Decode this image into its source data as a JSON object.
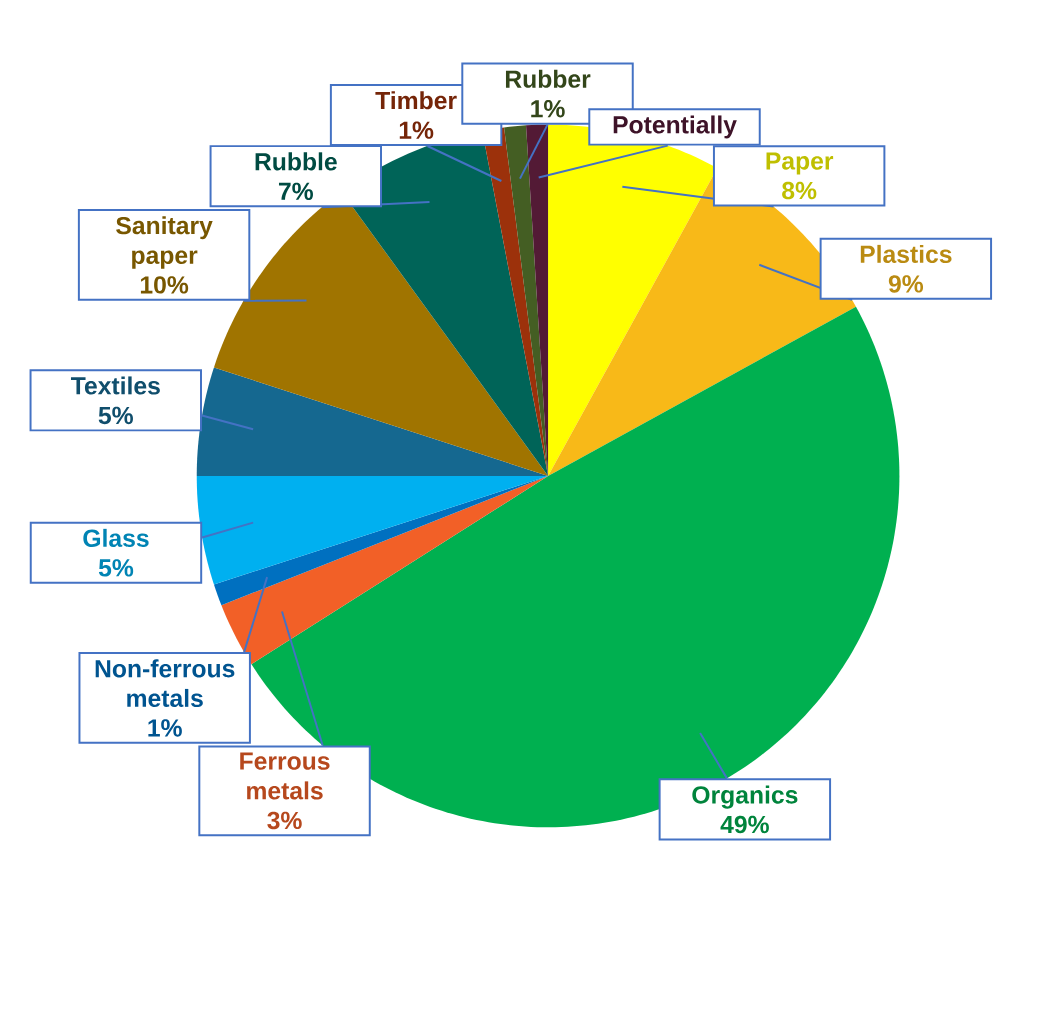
{
  "chart_data": {
    "type": "pie",
    "categories": [
      "Paper",
      "Plastics",
      "Organics",
      "Ferrous metals",
      "Non-ferrous metals",
      "Glass",
      "Textiles",
      "Sanitary paper",
      "Rubble",
      "Timber",
      "Rubber",
      "Potentially"
    ],
    "values": [
      8,
      9,
      49,
      3,
      1,
      5,
      5,
      10,
      7,
      1,
      1,
      1
    ],
    "colors": [
      "#ffff00",
      "#f8b918",
      "#00b050",
      "#f26027",
      "#0070c0",
      "#00b0f0",
      "#156890",
      "#a07400",
      "#006458",
      "#9c310b",
      "#445e23",
      "#531a35"
    ],
    "value_labels": [
      "8%",
      "9%",
      "49%",
      "3%",
      "1%",
      "5%",
      "5%",
      "10%",
      "7%",
      "1%",
      "1%",
      null
    ]
  }
}
